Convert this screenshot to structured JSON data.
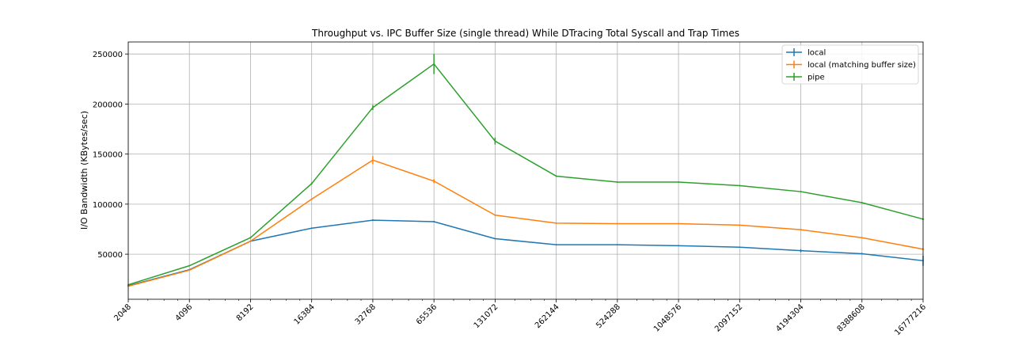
{
  "chart_data": {
    "type": "line",
    "title": "Throughput vs. IPC Buffer Size (single thread) While DTracing Total Syscall and Trap Times",
    "xlabel": "",
    "ylabel": "I/O Bandwidth (KBytes/sec)",
    "x_scale": "log2",
    "x": [
      2048,
      4096,
      8192,
      16384,
      32768,
      65536,
      131072,
      262144,
      524288,
      1048576,
      2097152,
      4194304,
      8388608,
      16777216
    ],
    "x_tick_labels": [
      "2048",
      "4096",
      "8192",
      "16384",
      "32768",
      "65536",
      "131072",
      "262144",
      "524288",
      "1048576",
      "2097152",
      "4194304",
      "8388608",
      "16777216"
    ],
    "ylim": [
      5000,
      262000
    ],
    "y_ticks": [
      50000,
      100000,
      150000,
      200000,
      250000
    ],
    "y_tick_labels": [
      "50000",
      "100000",
      "150000",
      "200000",
      "250000"
    ],
    "grid": true,
    "legend_position": "top-right",
    "series": [
      {
        "name": "local",
        "color": "#1f77b4",
        "values": [
          18500,
          34500,
          63000,
          76000,
          84000,
          82500,
          65500,
          59500,
          59500,
          58500,
          57000,
          53500,
          50500,
          43500
        ],
        "errors": [
          500,
          500,
          800,
          600,
          800,
          700,
          600,
          500,
          500,
          500,
          500,
          1500,
          800,
          5000
        ]
      },
      {
        "name": "local (matching buffer size)",
        "color": "#ff7f0e",
        "values": [
          18000,
          34000,
          63000,
          105000,
          144000,
          123000,
          89000,
          81000,
          80500,
          80500,
          79000,
          74500,
          66500,
          55000
        ],
        "errors": [
          500,
          500,
          800,
          800,
          4000,
          2000,
          800,
          600,
          500,
          500,
          500,
          600,
          600,
          800
        ]
      },
      {
        "name": "pipe",
        "color": "#2ca02c",
        "values": [
          19500,
          38500,
          66500,
          120500,
          196500,
          240000,
          163000,
          128000,
          122000,
          122000,
          118500,
          112500,
          101500,
          85000
        ],
        "errors": [
          500,
          600,
          800,
          1000,
          2500,
          10000,
          3500,
          800,
          600,
          600,
          600,
          600,
          600,
          800
        ]
      }
    ]
  }
}
